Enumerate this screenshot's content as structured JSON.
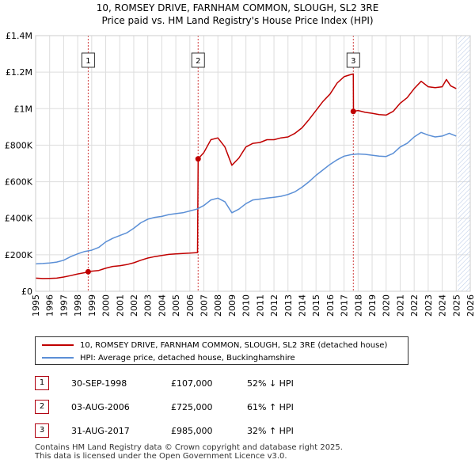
{
  "header": {
    "title": "10, ROMSEY DRIVE, FARNHAM COMMON, SLOUGH, SL2 3RE",
    "subtitle": "Price paid vs. HM Land Registry's House Price Index (HPI)"
  },
  "colors": {
    "property": "#c00000",
    "hpi": "#5b8fd6",
    "grid": "#dddddd",
    "future_hatch": "#b7c8e6",
    "marker_line": "#d04040"
  },
  "chart_data": {
    "type": "line",
    "title": "10, ROMSEY DRIVE, FARNHAM COMMON, SLOUGH, SL2 3RE",
    "xlim": [
      1995,
      2026
    ],
    "ylim": [
      0,
      1400000
    ],
    "y_ticks": [
      0,
      200000,
      400000,
      600000,
      800000,
      1000000,
      1200000,
      1400000
    ],
    "y_tick_labels": [
      "£0",
      "£200K",
      "£400K",
      "£600K",
      "£800K",
      "£1M",
      "£1.2M",
      "£1.4M"
    ],
    "x_ticks": [
      1995,
      1996,
      1997,
      1998,
      1999,
      2000,
      2001,
      2002,
      2003,
      2004,
      2005,
      2006,
      2007,
      2008,
      2009,
      2010,
      2011,
      2012,
      2013,
      2014,
      2015,
      2016,
      2017,
      2018,
      2019,
      2020,
      2021,
      2022,
      2023,
      2024,
      2025,
      2026
    ],
    "x_tick_labels": [
      "1995",
      "1996",
      "1997",
      "1998",
      "1999",
      "2000",
      "2001",
      "2002",
      "2003",
      "2004",
      "2005",
      "2006",
      "2007",
      "2008",
      "2009",
      "2010",
      "2011",
      "2012",
      "2013",
      "2014",
      "2015",
      "2016",
      "2017",
      "2018",
      "2019",
      "2020",
      "2021",
      "2022",
      "2023",
      "2024",
      "2025",
      "2026"
    ],
    "future_from": 2025.1,
    "series": [
      {
        "name": "10, ROMSEY DRIVE, FARNHAM COMMON, SLOUGH, SL2 3RE (detached house)",
        "color": "#c00000",
        "points": [
          [
            1995.0,
            72000
          ],
          [
            1995.5,
            70000
          ],
          [
            1996.0,
            70500
          ],
          [
            1996.5,
            72000
          ],
          [
            1997.0,
            78000
          ],
          [
            1997.5,
            86000
          ],
          [
            1998.0,
            95000
          ],
          [
            1998.5,
            102000
          ],
          [
            1998.75,
            107000
          ],
          [
            1999.0,
            110000
          ],
          [
            1999.5,
            114000
          ],
          [
            2000.0,
            126000
          ],
          [
            2000.5,
            136000
          ],
          [
            2001.0,
            140000
          ],
          [
            2001.5,
            146000
          ],
          [
            2002.0,
            156000
          ],
          [
            2002.5,
            170000
          ],
          [
            2003.0,
            182000
          ],
          [
            2003.5,
            190000
          ],
          [
            2004.0,
            196000
          ],
          [
            2004.5,
            202000
          ],
          [
            2005.0,
            205000
          ],
          [
            2005.5,
            207000
          ],
          [
            2006.0,
            209000
          ],
          [
            2006.55,
            212000
          ],
          [
            2006.59,
            725000
          ],
          [
            2007.0,
            760000
          ],
          [
            2007.5,
            830000
          ],
          [
            2008.0,
            840000
          ],
          [
            2008.5,
            790000
          ],
          [
            2009.0,
            690000
          ],
          [
            2009.5,
            730000
          ],
          [
            2010.0,
            790000
          ],
          [
            2010.5,
            810000
          ],
          [
            2011.0,
            815000
          ],
          [
            2011.5,
            830000
          ],
          [
            2012.0,
            830000
          ],
          [
            2012.5,
            840000
          ],
          [
            2013.0,
            845000
          ],
          [
            2013.5,
            865000
          ],
          [
            2014.0,
            895000
          ],
          [
            2014.5,
            940000
          ],
          [
            2015.0,
            990000
          ],
          [
            2015.5,
            1040000
          ],
          [
            2016.0,
            1080000
          ],
          [
            2016.5,
            1140000
          ],
          [
            2017.0,
            1175000
          ],
          [
            2017.4,
            1185000
          ],
          [
            2017.66,
            1190000
          ],
          [
            2017.67,
            985000
          ],
          [
            2018.0,
            990000
          ],
          [
            2018.5,
            980000
          ],
          [
            2019.0,
            975000
          ],
          [
            2019.5,
            968000
          ],
          [
            2020.0,
            965000
          ],
          [
            2020.5,
            985000
          ],
          [
            2021.0,
            1030000
          ],
          [
            2021.5,
            1060000
          ],
          [
            2022.0,
            1110000
          ],
          [
            2022.5,
            1150000
          ],
          [
            2023.0,
            1120000
          ],
          [
            2023.5,
            1115000
          ],
          [
            2024.0,
            1120000
          ],
          [
            2024.3,
            1160000
          ],
          [
            2024.6,
            1125000
          ],
          [
            2025.0,
            1110000
          ]
        ]
      },
      {
        "name": "HPI: Average price, detached house, Buckinghamshire",
        "color": "#5b8fd6",
        "points": [
          [
            1995.0,
            150000
          ],
          [
            1995.5,
            152000
          ],
          [
            1996.0,
            155000
          ],
          [
            1996.5,
            160000
          ],
          [
            1997.0,
            170000
          ],
          [
            1997.5,
            190000
          ],
          [
            1998.0,
            205000
          ],
          [
            1998.5,
            218000
          ],
          [
            1999.0,
            225000
          ],
          [
            1999.5,
            240000
          ],
          [
            2000.0,
            270000
          ],
          [
            2000.5,
            290000
          ],
          [
            2001.0,
            305000
          ],
          [
            2001.5,
            320000
          ],
          [
            2002.0,
            345000
          ],
          [
            2002.5,
            375000
          ],
          [
            2003.0,
            395000
          ],
          [
            2003.5,
            405000
          ],
          [
            2004.0,
            410000
          ],
          [
            2004.5,
            420000
          ],
          [
            2005.0,
            425000
          ],
          [
            2005.5,
            430000
          ],
          [
            2006.0,
            440000
          ],
          [
            2006.5,
            450000
          ],
          [
            2007.0,
            470000
          ],
          [
            2007.5,
            500000
          ],
          [
            2008.0,
            510000
          ],
          [
            2008.5,
            490000
          ],
          [
            2009.0,
            430000
          ],
          [
            2009.5,
            450000
          ],
          [
            2010.0,
            480000
          ],
          [
            2010.5,
            500000
          ],
          [
            2011.0,
            505000
          ],
          [
            2011.5,
            510000
          ],
          [
            2012.0,
            515000
          ],
          [
            2012.5,
            520000
          ],
          [
            2013.0,
            530000
          ],
          [
            2013.5,
            545000
          ],
          [
            2014.0,
            570000
          ],
          [
            2014.5,
            600000
          ],
          [
            2015.0,
            635000
          ],
          [
            2015.5,
            665000
          ],
          [
            2016.0,
            695000
          ],
          [
            2016.5,
            720000
          ],
          [
            2017.0,
            740000
          ],
          [
            2017.5,
            748000
          ],
          [
            2018.0,
            752000
          ],
          [
            2018.5,
            750000
          ],
          [
            2019.0,
            745000
          ],
          [
            2019.5,
            740000
          ],
          [
            2020.0,
            738000
          ],
          [
            2020.5,
            755000
          ],
          [
            2021.0,
            790000
          ],
          [
            2021.5,
            810000
          ],
          [
            2022.0,
            845000
          ],
          [
            2022.5,
            870000
          ],
          [
            2023.0,
            855000
          ],
          [
            2023.5,
            845000
          ],
          [
            2024.0,
            850000
          ],
          [
            2024.5,
            865000
          ],
          [
            2025.0,
            850000
          ]
        ]
      }
    ],
    "sales": [
      {
        "label": "1",
        "x": 1998.75,
        "value": 107000
      },
      {
        "label": "2",
        "x": 2006.59,
        "value": 725000
      },
      {
        "label": "3",
        "x": 2017.66,
        "value": 985000
      }
    ]
  },
  "legend": {
    "property_label": "10, ROMSEY DRIVE, FARNHAM COMMON, SLOUGH, SL2 3RE (detached house)",
    "hpi_label": "HPI: Average price, detached house, Buckinghamshire"
  },
  "transactions": [
    {
      "num": "1",
      "date": "30-SEP-1998",
      "price": "£107,000",
      "hpi": "52% ↓ HPI"
    },
    {
      "num": "2",
      "date": "03-AUG-2006",
      "price": "£725,000",
      "hpi": "61% ↑ HPI"
    },
    {
      "num": "3",
      "date": "31-AUG-2017",
      "price": "£985,000",
      "hpi": "32% ↑ HPI"
    }
  ],
  "footer": {
    "line1": "Contains HM Land Registry data © Crown copyright and database right 2025.",
    "line2": "This data is licensed under the Open Government Licence v3.0."
  }
}
